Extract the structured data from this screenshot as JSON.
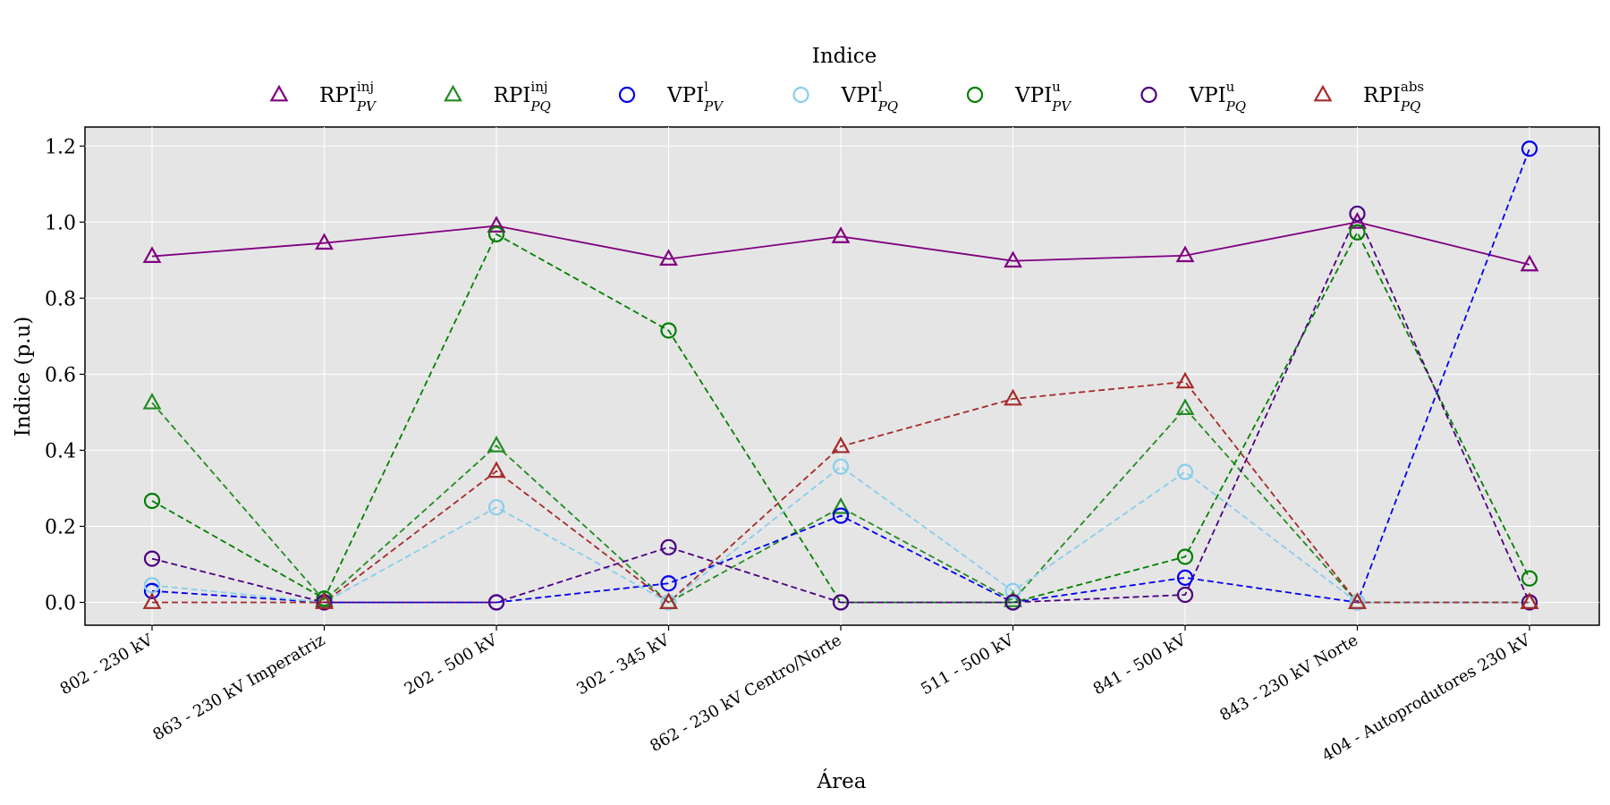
{
  "chart_data": {
    "type": "line",
    "legend_title": "Indice",
    "legend_placement": "top-center, outside plot",
    "xlabel": "Área",
    "ylabel": "Indice (p.u)",
    "ylim": [
      -0.06,
      1.25
    ],
    "yticks": [
      "0.0",
      "0.2",
      "0.4",
      "0.6",
      "0.8",
      "1.0",
      "1.2"
    ],
    "ytick_values": [
      0,
      0.2,
      0.4,
      0.6,
      0.8,
      1.0,
      1.2
    ],
    "grid": true,
    "plot_background": "#e5e5e5",
    "categories": [
      "802 - 230 kV",
      "863 - 230 kV Imperatriz",
      "202 - 500 kV",
      "302 - 345 kV",
      "862 - 230 kV Centro/Norte",
      "511 - 500 kV",
      "841 - 500 kV",
      "843 - 230 kV Norte",
      "404 - Autoprodutores 230 kV"
    ],
    "series": [
      {
        "base": "RPI",
        "sup": "inj",
        "sub": "PV",
        "marker": "triangle",
        "line": "solid",
        "color": "#800080",
        "values": [
          0.91,
          0.945,
          0.99,
          0.903,
          0.962,
          0.898,
          0.912,
          1.0,
          0.888
        ]
      },
      {
        "base": "RPI",
        "sup": "inj",
        "sub": "PQ",
        "marker": "triangle",
        "line": "dashed",
        "color": "#228b22",
        "values": [
          0.525,
          0.005,
          0.412,
          0.0,
          0.25,
          0.005,
          0.51,
          0.0,
          0.0
        ]
      },
      {
        "base": "VPI",
        "sup": "l",
        "sub": "PV",
        "marker": "circle",
        "line": "dashed",
        "color": "#0000ee",
        "values": [
          0.03,
          0.0,
          0.0,
          0.05,
          0.228,
          0.0,
          0.065,
          0.0,
          1.193
        ]
      },
      {
        "base": "VPI",
        "sup": "l",
        "sub": "PQ",
        "marker": "circle",
        "line": "dashed",
        "color": "#87ceeb",
        "values": [
          0.045,
          0.0,
          0.25,
          0.0,
          0.357,
          0.03,
          0.343,
          0.0,
          0.0
        ]
      },
      {
        "base": "VPI",
        "sup": "u",
        "sub": "PV",
        "marker": "circle",
        "line": "dashed",
        "color": "#008000",
        "values": [
          0.267,
          0.01,
          0.968,
          0.715,
          0.0,
          0.0,
          0.12,
          0.973,
          0.063
        ]
      },
      {
        "base": "VPI",
        "sup": "u",
        "sub": "PQ",
        "marker": "circle",
        "line": "dashed",
        "color": "#4b0082",
        "values": [
          0.115,
          0.0,
          0.0,
          0.145,
          0.0,
          0.0,
          0.02,
          1.022,
          0.0
        ]
      },
      {
        "base": "RPI",
        "sup": "abs",
        "sub": "PQ",
        "marker": "triangle",
        "line": "dashed",
        "color": "#a52a2a",
        "values": [
          0.0,
          0.0,
          0.345,
          0.0,
          0.41,
          0.535,
          0.58,
          0.0,
          0.0
        ]
      }
    ]
  }
}
